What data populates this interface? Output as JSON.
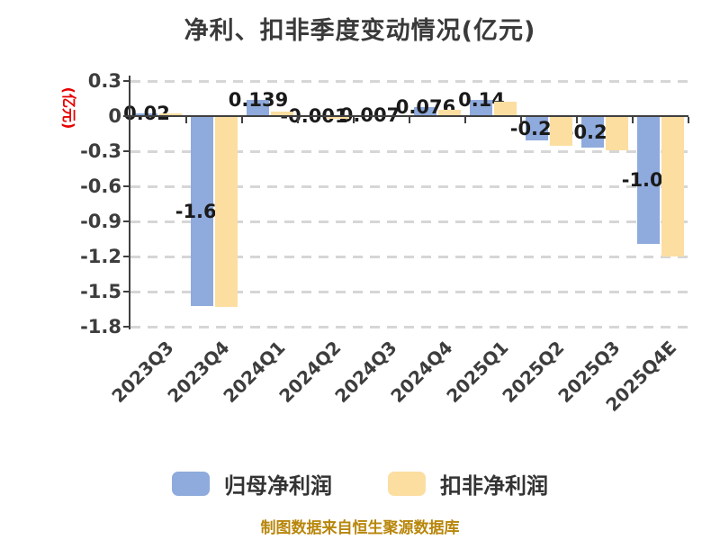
{
  "title": "净利、扣非季度变动情况(亿元)",
  "footer": "制图数据来自恒生聚源数据库",
  "colors": {
    "series_blue": "#8FAADC",
    "series_orange": "#FCDEA1",
    "axis": "#3F3F3F",
    "grid": "#D6D6D6",
    "data_label": "#1A1A1A",
    "y_unit_label": "#E60000",
    "footer_text": "#B8860B"
  },
  "chart_data": {
    "type": "bar",
    "title": "净利、扣非季度变动情况(亿元)",
    "ylabel": "(亿元)",
    "xlabel": "",
    "categories": [
      "2023Q3",
      "2023Q4",
      "2024Q1",
      "2024Q2",
      "2024Q3",
      "2024Q4",
      "2025Q1",
      "2025Q2",
      "2025Q3",
      "2025Q4E"
    ],
    "series": [
      {
        "name": "归母净利润",
        "color": "#8FAADC",
        "values": [
          0.02,
          -1.62,
          0.139,
          -0.001,
          0.007,
          0.076,
          0.14,
          -0.21,
          -0.27,
          -1.09
        ],
        "data_labels": [
          "0.02",
          "-1.62",
          "0.139",
          "-0.001",
          "0.007",
          "0.076",
          "0.14",
          "-0.21",
          "-0.27",
          "-1.09"
        ]
      },
      {
        "name": "扣非净利润",
        "color": "#FCDEA1",
        "values": [
          0.02,
          -1.63,
          0.04,
          -0.02,
          0.01,
          0.05,
          0.12,
          -0.25,
          -0.29,
          -1.2
        ]
      }
    ],
    "yticks": [
      0.3,
      0,
      -0.3,
      -0.6,
      -0.9,
      -1.2,
      -1.5,
      -1.8
    ],
    "ytick_labels": [
      "0.3",
      "0",
      "-0.3",
      "-0.6",
      "-0.9",
      "-1.2",
      "-1.5",
      "-1.8"
    ],
    "ylim": [
      -1.8,
      0.3
    ],
    "grid": "horizontal-dashed",
    "legend_position": "bottom"
  }
}
